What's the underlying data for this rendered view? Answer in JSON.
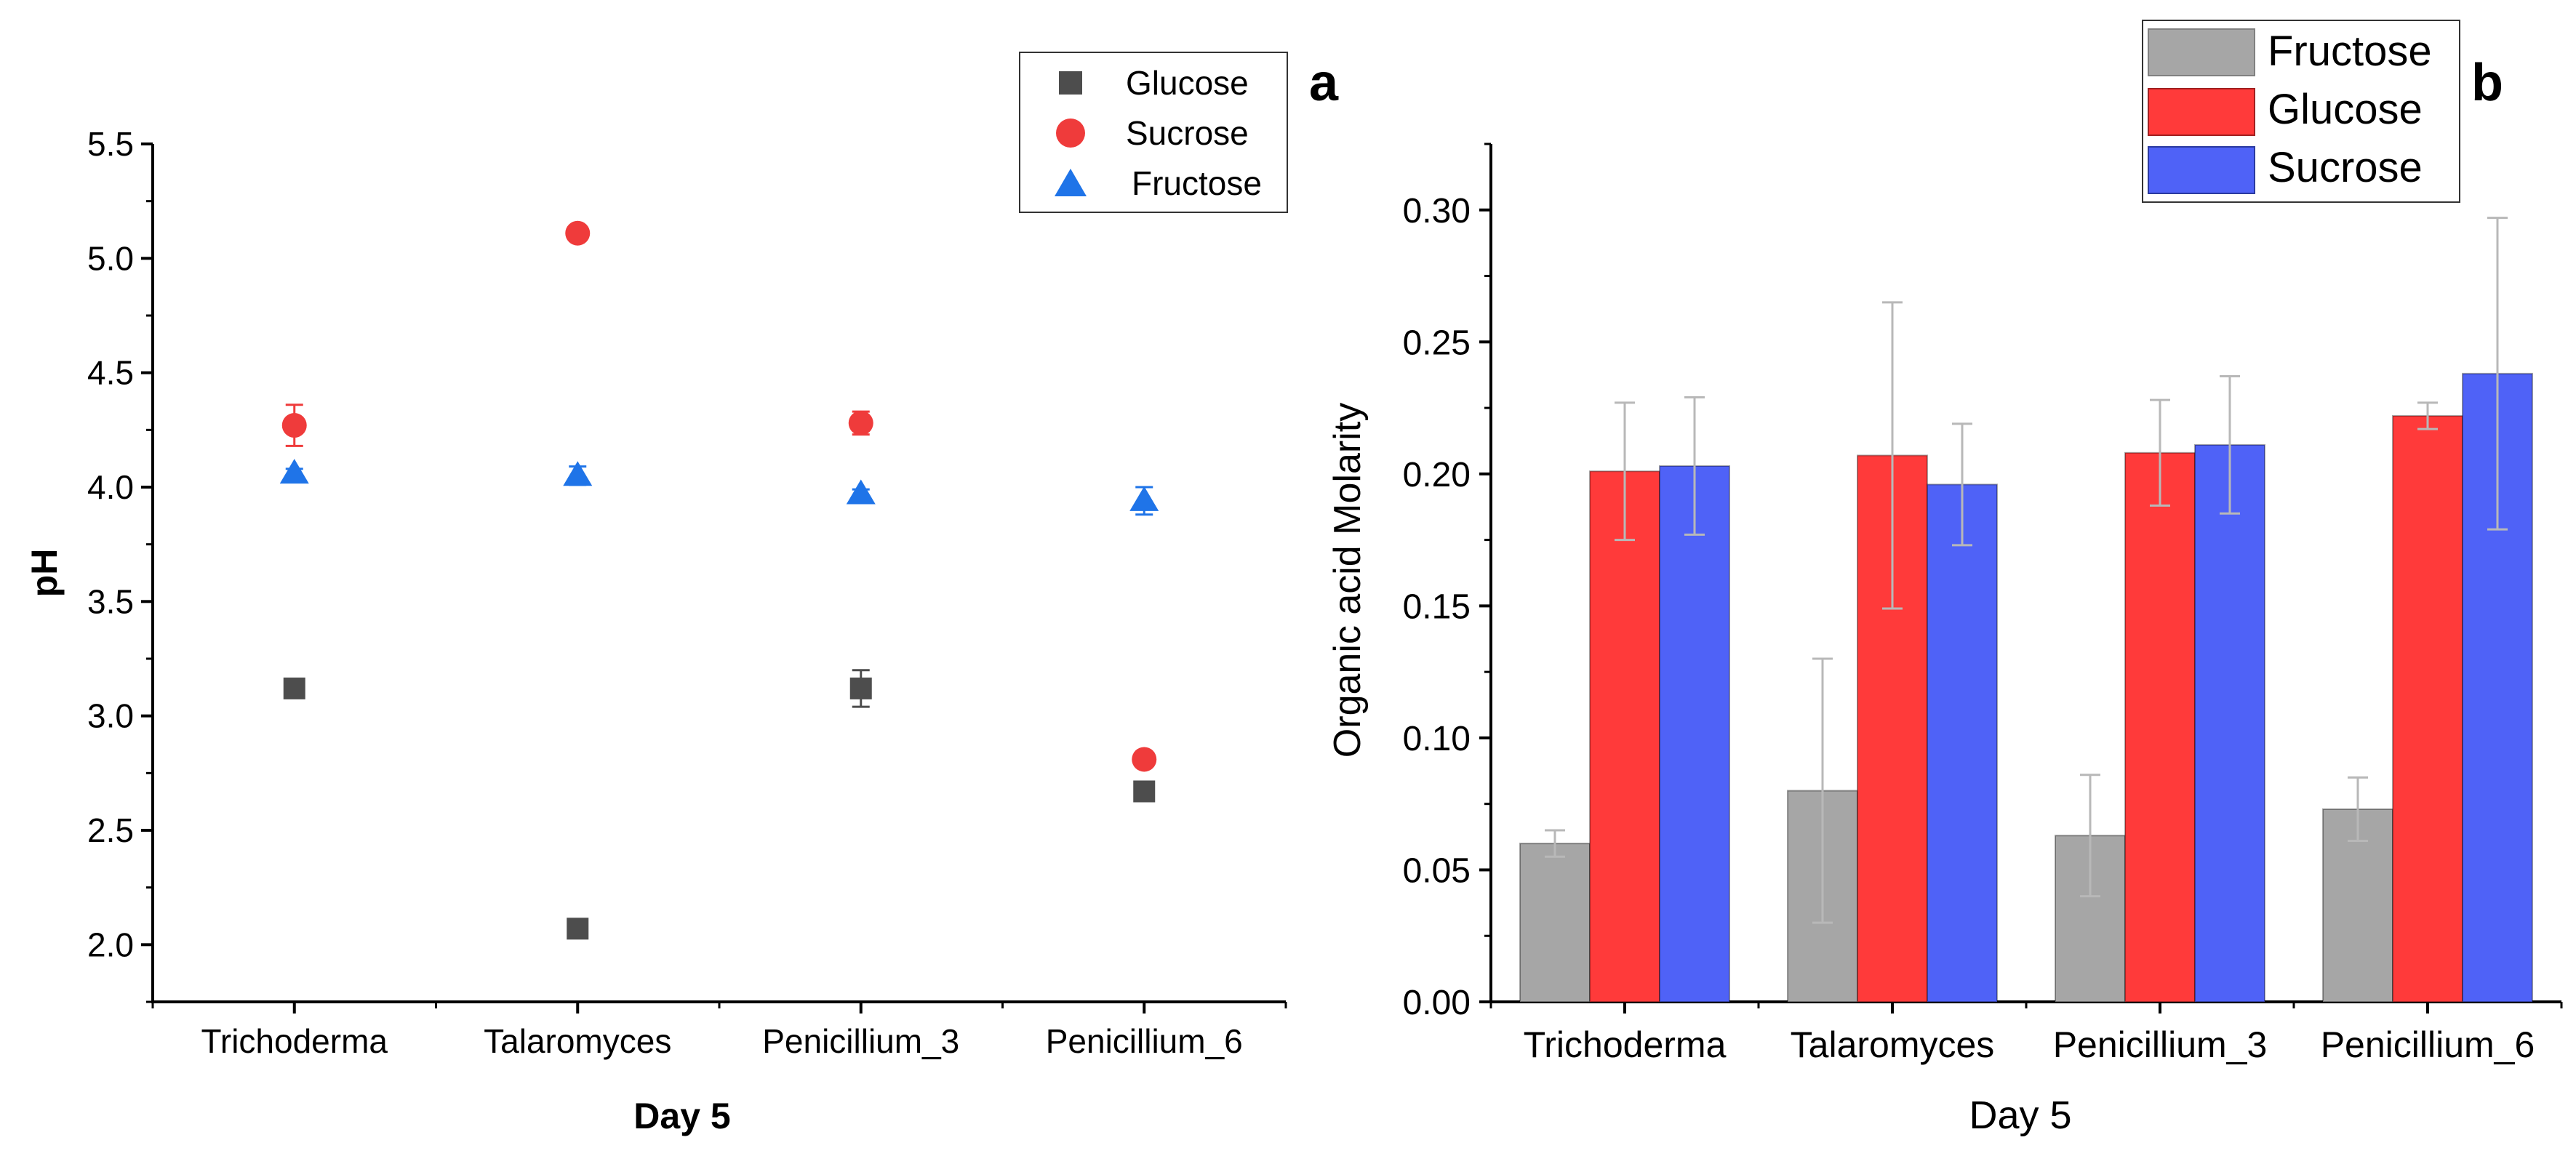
{
  "colors": {
    "glucose_marker": "#4d4d4d",
    "sucrose_marker": "#ef3b3b",
    "fructose_marker": "#1f74e8",
    "bar_fructose": "#a6a6a6",
    "bar_glucose": "#ff3a3a",
    "bar_sucrose": "#4f62f7"
  },
  "chart_data": [
    {
      "panel_label": "a",
      "type": "scatter",
      "xlabel": "Day 5",
      "ylabel": "pH",
      "categories": [
        "Trichoderma",
        "Talaromyces",
        "Penicillium_3",
        "Penicillium_6"
      ],
      "ylim": [
        1.75,
        5.5
      ],
      "yticks": [
        "2.0",
        "2.5",
        "3.0",
        "3.5",
        "4.0",
        "4.5",
        "5.0",
        "5.5"
      ],
      "legend_position": "top-right",
      "series": [
        {
          "name": "Glucose",
          "marker": "square",
          "color_key": "glucose_marker",
          "values": [
            3.12,
            2.07,
            3.12,
            2.67
          ],
          "errors": [
            0.04,
            0.02,
            0.08,
            0.02
          ]
        },
        {
          "name": "Sucrose",
          "marker": "circle",
          "color_key": "sucrose_marker",
          "values": [
            4.27,
            5.11,
            4.28,
            2.81
          ],
          "errors": [
            0.09,
            0.02,
            0.05,
            0.02
          ]
        },
        {
          "name": "Fructose",
          "marker": "triangle",
          "color_key": "fructose_marker",
          "values": [
            4.06,
            4.05,
            3.97,
            3.94
          ],
          "errors": [
            0.02,
            0.04,
            0.02,
            0.06
          ]
        }
      ]
    },
    {
      "panel_label": "b",
      "type": "bar",
      "xlabel": "Day 5",
      "ylabel": "Organic acid Molarity",
      "categories": [
        "Trichoderma",
        "Talaromyces",
        "Penicillium_3",
        "Penicillium_6"
      ],
      "ylim": [
        0,
        0.325
      ],
      "yticks": [
        "0.00",
        "0.05",
        "0.10",
        "0.15",
        "0.20",
        "0.25",
        "0.30"
      ],
      "legend_position": "top-right",
      "series": [
        {
          "name": "Fructose",
          "color_key": "bar_fructose",
          "values": [
            0.06,
            0.08,
            0.063,
            0.073
          ],
          "errors": [
            0.005,
            0.05,
            0.023,
            0.012
          ]
        },
        {
          "name": "Glucose",
          "color_key": "bar_glucose",
          "values": [
            0.201,
            0.207,
            0.208,
            0.222
          ],
          "errors": [
            0.026,
            0.058,
            0.02,
            0.005
          ]
        },
        {
          "name": "Sucrose",
          "color_key": "bar_sucrose",
          "values": [
            0.203,
            0.196,
            0.211,
            0.238
          ],
          "errors": [
            0.026,
            0.023,
            0.026,
            0.059
          ]
        }
      ]
    }
  ]
}
